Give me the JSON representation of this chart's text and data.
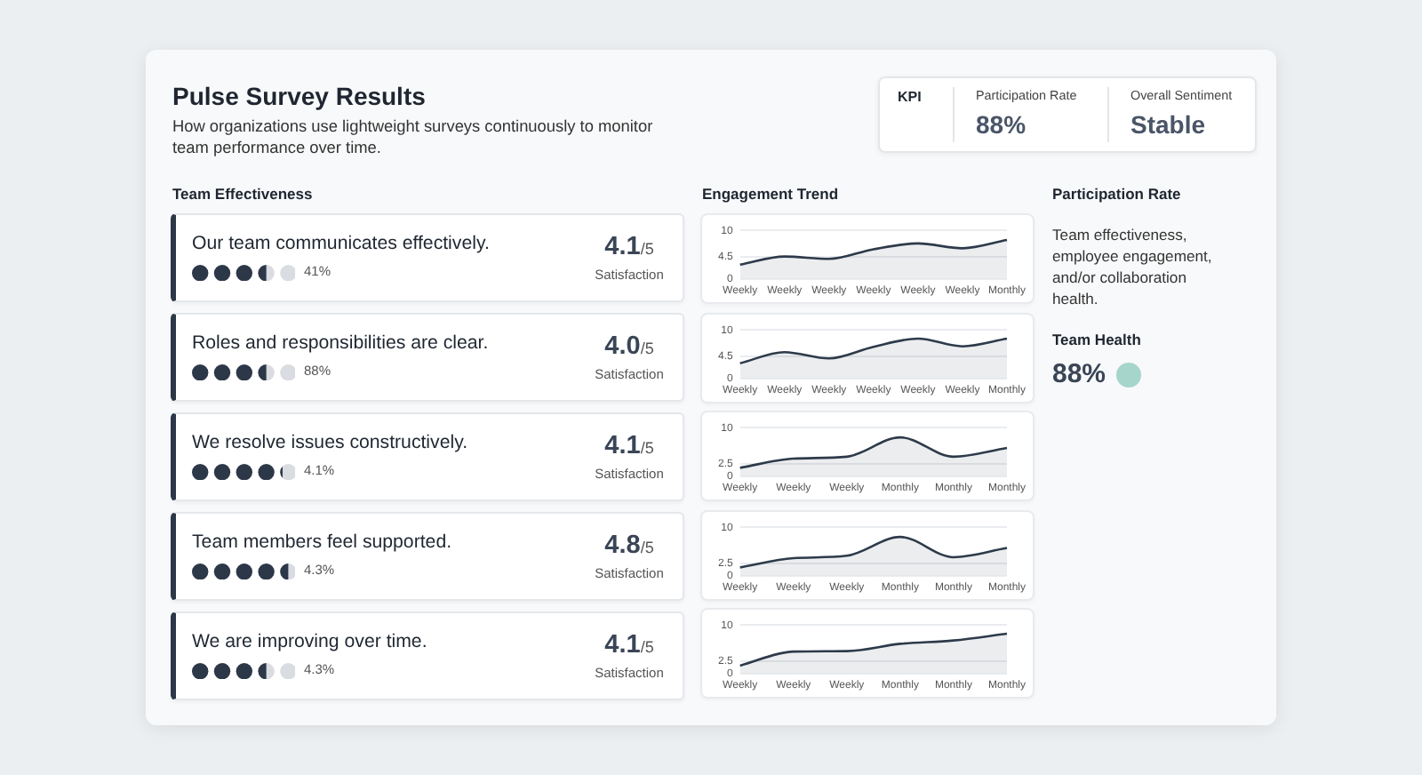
{
  "chart_data": [
    {
      "type": "other",
      "title": "Pulse Survey Results",
      "subtitle": "How organizations use lightweight surveys continuously to monitor team performance over time."
    },
    {
      "type": "other",
      "title": "KPI",
      "categories": [
        "Participation Rate",
        "Overall Sentiment"
      ],
      "value_labels": [
        "88%",
        "Stable"
      ]
    },
    {
      "type": "other",
      "title": "Team Effectiveness",
      "categories": [
        "Our team communicates effectively.",
        "Roles and responsibilities are clear.",
        "We resolve issues constructively.",
        "Team members feel supported.",
        "We are improving over time."
      ],
      "series": [
        {
          "values": [
            4.1,
            4.0,
            4.1,
            4.8,
            4.1
          ],
          "value_labels": [
            "4.1",
            "4.0",
            "4.1",
            "4.8",
            "4.1"
          ]
        },
        {
          "values": [
            41,
            88,
            4.1,
            4.3,
            4.3
          ],
          "value_labels": [
            "41%",
            "88%",
            "4.1%",
            "4.3%",
            "4.3%"
          ]
        }
      ],
      "annotations": [
        "/5",
        "Satisfaction"
      ]
    },
    {
      "type": "area",
      "title": "Engagement Trend",
      "categories": [
        "Weekly",
        "Weekly",
        "Weekly",
        "Weekly",
        "Weekly",
        "Weekly",
        "Monthly"
      ],
      "values": [
        2.9,
        4.6,
        4.1,
        6.1,
        7.3,
        6.3,
        8.0
      ],
      "color": "#2d3a4a",
      "ylim": [
        0,
        10
      ],
      "yticks": [
        0,
        4.5,
        10
      ],
      "grid": "y"
    },
    {
      "type": "area",
      "categories": [
        "Weekly",
        "Weekly",
        "Weekly",
        "Weekly",
        "Weekly",
        "Weekly",
        "Monthly"
      ],
      "values": [
        3.1,
        5.4,
        4.1,
        6.5,
        8.2,
        6.6,
        8.2
      ],
      "color": "#2d3a4a",
      "ylim": [
        0,
        10
      ],
      "yticks": [
        0,
        4.5,
        10
      ],
      "grid": "y"
    },
    {
      "type": "area",
      "categories": [
        "Weekly",
        "Weekly",
        "Weekly",
        "Monthly",
        "Monthly",
        "Monthly"
      ],
      "values": [
        1.7,
        3.6,
        4.0,
        8.0,
        4.0,
        5.8
      ],
      "color": "#2d3a4a",
      "ylim": [
        0,
        10
      ],
      "yticks": [
        0,
        2.5,
        10
      ],
      "grid": "y"
    },
    {
      "type": "area",
      "categories": [
        "Weekly",
        "Weekly",
        "Weekly",
        "Monthly",
        "Monthly",
        "Monthly"
      ],
      "values": [
        1.7,
        3.6,
        4.1,
        8.0,
        3.8,
        5.7
      ],
      "color": "#2d3a4a",
      "ylim": [
        0,
        10
      ],
      "yticks": [
        0,
        2.5,
        10
      ],
      "grid": "y"
    },
    {
      "type": "area",
      "categories": [
        "Weekly",
        "Weekly",
        "Weekly",
        "Monthly",
        "Monthly",
        "Monthly"
      ],
      "values": [
        1.6,
        4.5,
        4.6,
        6.1,
        6.8,
        8.2
      ],
      "color": "#2d3a4a",
      "ylim": [
        0,
        10
      ],
      "yticks": [
        0,
        2.5,
        10
      ],
      "grid": "y"
    },
    {
      "type": "other",
      "title": "Participation Rate",
      "subtitle": "Team effectiveness, employee engagement, and/or collaboration health.",
      "categories": [
        "Team Health"
      ],
      "value_labels": [
        "88%"
      ],
      "colors": [
        "#a6d5cb"
      ]
    }
  ]
}
